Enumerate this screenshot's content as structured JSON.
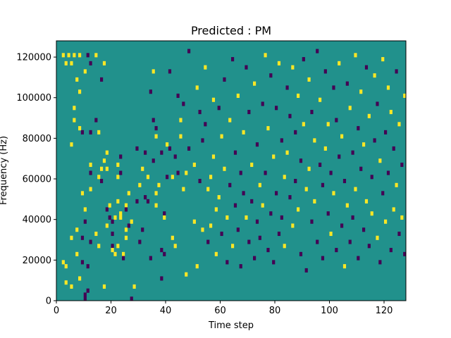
{
  "chart_data": {
    "type": "heatmap",
    "title": "Predicted : PM",
    "xlabel": "Time step",
    "ylabel": "Frequency (Hz)",
    "xlim": [
      0,
      128
    ],
    "ylim": [
      0,
      128000
    ],
    "x_ticks": [
      0,
      20,
      40,
      60,
      80,
      100,
      120
    ],
    "y_ticks": [
      0,
      20000,
      40000,
      60000,
      80000,
      100000,
      120000
    ],
    "y_tick_labels": [
      "0",
      "20000",
      "40000",
      "60000",
      "80000",
      "100000",
      "120000"
    ],
    "grid": false,
    "legend": "none",
    "colormap": "viridis",
    "colors": {
      "background": "#21918c",
      "high": "#fde725",
      "low": "#440154"
    },
    "n_time_steps": 128,
    "n_freq_bins": 64,
    "freq_bin_hz": 2000,
    "default_value": 0,
    "cells": [
      [
        2,
        9,
        "high"
      ],
      [
        2,
        60,
        "high"
      ],
      [
        3,
        58,
        "high"
      ],
      [
        3,
        8,
        "high"
      ],
      [
        3,
        4,
        "high"
      ],
      [
        4,
        60,
        "high"
      ],
      [
        5,
        58,
        "high"
      ],
      [
        5,
        38,
        "high"
      ],
      [
        5,
        15,
        "high"
      ],
      [
        5,
        3,
        "high"
      ],
      [
        6,
        60,
        "high"
      ],
      [
        6,
        47,
        "high"
      ],
      [
        6,
        44,
        "high"
      ],
      [
        7,
        54,
        "high"
      ],
      [
        7,
        17,
        "high"
      ],
      [
        7,
        11,
        "high"
      ],
      [
        8,
        60,
        "high"
      ],
      [
        8,
        51,
        "high"
      ],
      [
        8,
        42,
        "high"
      ],
      [
        8,
        5,
        "high"
      ],
      [
        9,
        41,
        "low"
      ],
      [
        9,
        26,
        "high"
      ],
      [
        9,
        15,
        "low"
      ],
      [
        9,
        9,
        "low"
      ],
      [
        10,
        56,
        "high"
      ],
      [
        10,
        22,
        "high"
      ],
      [
        10,
        19,
        "low"
      ],
      [
        10,
        1,
        "low"
      ],
      [
        10,
        0,
        "low"
      ],
      [
        11,
        60,
        "low"
      ],
      [
        11,
        8,
        "low"
      ],
      [
        11,
        2,
        "low"
      ],
      [
        12,
        58,
        "low"
      ],
      [
        12,
        41,
        "low"
      ],
      [
        12,
        33,
        "high"
      ],
      [
        12,
        31,
        "low"
      ],
      [
        12,
        27,
        "high"
      ],
      [
        12,
        14,
        "low"
      ],
      [
        14,
        60,
        "high"
      ],
      [
        14,
        44,
        "low"
      ],
      [
        14,
        16,
        "high"
      ],
      [
        15,
        41,
        "high"
      ],
      [
        15,
        30,
        "high"
      ],
      [
        15,
        13,
        "high"
      ],
      [
        16,
        54,
        "low"
      ],
      [
        16,
        32,
        "high"
      ],
      [
        16,
        29,
        "low"
      ],
      [
        17,
        58,
        "high"
      ],
      [
        17,
        34,
        "high"
      ],
      [
        17,
        3,
        "high"
      ],
      [
        18,
        36,
        "high"
      ],
      [
        18,
        32,
        "high"
      ],
      [
        18,
        22,
        "low"
      ],
      [
        18,
        18,
        "high"
      ],
      [
        19,
        23,
        "high"
      ],
      [
        19,
        20,
        "low"
      ],
      [
        20,
        19,
        "low"
      ],
      [
        20,
        16,
        "low"
      ],
      [
        20,
        13,
        "low"
      ],
      [
        20,
        12,
        "high"
      ],
      [
        21,
        20,
        "high"
      ],
      [
        21,
        11,
        "high"
      ],
      [
        22,
        33,
        "high"
      ],
      [
        22,
        30,
        "high"
      ],
      [
        22,
        24,
        "high"
      ],
      [
        22,
        13,
        "high"
      ],
      [
        23,
        35,
        "low"
      ],
      [
        23,
        31,
        "low"
      ],
      [
        23,
        21,
        "high"
      ],
      [
        23,
        20,
        "high"
      ],
      [
        24,
        11,
        "high"
      ],
      [
        24,
        10,
        "low"
      ],
      [
        25,
        23,
        "high"
      ],
      [
        25,
        22,
        "low"
      ],
      [
        25,
        17,
        "high"
      ],
      [
        25,
        15,
        "high"
      ],
      [
        26,
        26,
        "high"
      ],
      [
        26,
        18,
        "low"
      ],
      [
        27,
        19,
        "high"
      ],
      [
        27,
        0,
        "low"
      ],
      [
        28,
        3,
        "high"
      ],
      [
        29,
        37,
        "low"
      ],
      [
        29,
        24,
        "low"
      ],
      [
        30,
        28,
        "high"
      ],
      [
        30,
        14,
        "low"
      ],
      [
        31,
        32,
        "high"
      ],
      [
        31,
        17,
        "low"
      ],
      [
        32,
        36,
        "low"
      ],
      [
        32,
        25,
        "low"
      ],
      [
        33,
        30,
        "high"
      ],
      [
        33,
        24,
        "low"
      ],
      [
        34,
        51,
        "low"
      ],
      [
        34,
        10,
        "low"
      ],
      [
        35,
        56,
        "high"
      ],
      [
        35,
        44,
        "low"
      ],
      [
        35,
        34,
        "low"
      ],
      [
        36,
        42,
        "low"
      ],
      [
        36,
        40,
        "high"
      ],
      [
        36,
        26,
        "high"
      ],
      [
        36,
        23,
        "high"
      ],
      [
        37,
        28,
        "high"
      ],
      [
        38,
        36,
        "low"
      ],
      [
        38,
        12,
        "low"
      ],
      [
        38,
        5,
        "low"
      ],
      [
        39,
        21,
        "low"
      ],
      [
        39,
        20,
        "high"
      ],
      [
        39,
        11,
        "low"
      ],
      [
        40,
        38,
        "high"
      ],
      [
        40,
        30,
        "low"
      ],
      [
        41,
        56,
        "low"
      ],
      [
        41,
        37,
        "low"
      ],
      [
        42,
        30,
        "high"
      ],
      [
        42,
        15,
        "high"
      ],
      [
        43,
        35,
        "low"
      ],
      [
        43,
        13,
        "high"
      ],
      [
        44,
        50,
        "low"
      ],
      [
        44,
        31,
        "low"
      ],
      [
        45,
        44,
        "high"
      ],
      [
        45,
        40,
        "high"
      ],
      [
        46,
        48,
        "low"
      ],
      [
        46,
        27,
        "high"
      ],
      [
        47,
        31,
        "high"
      ],
      [
        47,
        6,
        "high"
      ],
      [
        48,
        61,
        "low"
      ],
      [
        48,
        37,
        "low"
      ],
      [
        50,
        33,
        "high"
      ],
      [
        50,
        19,
        "high"
      ],
      [
        51,
        52,
        "high"
      ],
      [
        51,
        8,
        "high"
      ],
      [
        52,
        46,
        "low"
      ],
      [
        52,
        29,
        "low"
      ],
      [
        53,
        39,
        "low"
      ],
      [
        53,
        17,
        "high"
      ],
      [
        54,
        57,
        "high"
      ],
      [
        54,
        43,
        "low"
      ],
      [
        55,
        14,
        "low"
      ],
      [
        55,
        27,
        "high"
      ],
      [
        56,
        18,
        "high"
      ],
      [
        56,
        30,
        "high"
      ],
      [
        57,
        35,
        "high"
      ],
      [
        57,
        49,
        "high"
      ],
      [
        58,
        22,
        "high"
      ],
      [
        58,
        11,
        "high"
      ],
      [
        59,
        47,
        "low"
      ],
      [
        59,
        25,
        "high"
      ],
      [
        60,
        40,
        "high"
      ],
      [
        60,
        16,
        "low"
      ],
      [
        61,
        54,
        "low"
      ],
      [
        61,
        32,
        "high"
      ],
      [
        62,
        20,
        "high"
      ],
      [
        62,
        9,
        "low"
      ],
      [
        63,
        44,
        "high"
      ],
      [
        63,
        28,
        "low"
      ],
      [
        64,
        59,
        "low"
      ],
      [
        64,
        13,
        "high"
      ],
      [
        65,
        36,
        "low"
      ],
      [
        65,
        23,
        "low"
      ],
      [
        66,
        50,
        "high"
      ],
      [
        66,
        17,
        "low"
      ],
      [
        67,
        31,
        "low"
      ],
      [
        67,
        8,
        "low"
      ],
      [
        68,
        41,
        "high"
      ],
      [
        68,
        26,
        "low"
      ],
      [
        69,
        57,
        "low"
      ],
      [
        69,
        20,
        "high"
      ],
      [
        70,
        46,
        "low"
      ],
      [
        70,
        14,
        "low"
      ],
      [
        71,
        33,
        "high"
      ],
      [
        71,
        24,
        "low"
      ],
      [
        72,
        53,
        "high"
      ],
      [
        72,
        10,
        "low"
      ],
      [
        73,
        38,
        "low"
      ],
      [
        73,
        19,
        "low"
      ],
      [
        74,
        28,
        "high"
      ],
      [
        74,
        15,
        "low"
      ],
      [
        75,
        48,
        "low"
      ],
      [
        75,
        23,
        "high"
      ],
      [
        76,
        60,
        "high"
      ],
      [
        76,
        31,
        "low"
      ],
      [
        77,
        42,
        "high"
      ],
      [
        77,
        12,
        "low"
      ],
      [
        78,
        55,
        "low"
      ],
      [
        78,
        21,
        "low"
      ],
      [
        79,
        35,
        "high"
      ],
      [
        79,
        9,
        "low"
      ],
      [
        80,
        47,
        "low"
      ],
      [
        80,
        26,
        "low"
      ],
      [
        81,
        58,
        "high"
      ],
      [
        81,
        16,
        "low"
      ],
      [
        82,
        39,
        "low"
      ],
      [
        82,
        20,
        "low"
      ],
      [
        83,
        30,
        "high"
      ],
      [
        83,
        13,
        "high"
      ],
      [
        84,
        52,
        "low"
      ],
      [
        84,
        36,
        "high"
      ],
      [
        85,
        45,
        "low"
      ],
      [
        85,
        25,
        "low"
      ],
      [
        86,
        57,
        "high"
      ],
      [
        86,
        18,
        "high"
      ],
      [
        87,
        41,
        "low"
      ],
      [
        87,
        29,
        "low"
      ],
      [
        88,
        50,
        "high"
      ],
      [
        88,
        22,
        "high"
      ],
      [
        89,
        34,
        "low"
      ],
      [
        89,
        11,
        "low"
      ],
      [
        90,
        59,
        "low"
      ],
      [
        90,
        43,
        "high"
      ],
      [
        91,
        27,
        "high"
      ],
      [
        91,
        7,
        "low"
      ],
      [
        92,
        54,
        "high"
      ],
      [
        92,
        32,
        "high"
      ],
      [
        93,
        46,
        "low"
      ],
      [
        93,
        19,
        "low"
      ],
      [
        94,
        39,
        "high"
      ],
      [
        94,
        24,
        "high"
      ],
      [
        95,
        61,
        "low"
      ],
      [
        95,
        14,
        "low"
      ],
      [
        96,
        49,
        "high"
      ],
      [
        96,
        33,
        "low"
      ],
      [
        97,
        28,
        "low"
      ],
      [
        97,
        10,
        "low"
      ],
      [
        98,
        56,
        "low"
      ],
      [
        98,
        37,
        "high"
      ],
      [
        99,
        43,
        "high"
      ],
      [
        99,
        21,
        "low"
      ],
      [
        100,
        31,
        "low"
      ],
      [
        100,
        16,
        "high"
      ],
      [
        101,
        52,
        "low"
      ],
      [
        101,
        26,
        "high"
      ],
      [
        102,
        44,
        "low"
      ],
      [
        102,
        12,
        "low"
      ],
      [
        103,
        58,
        "high"
      ],
      [
        103,
        35,
        "low"
      ],
      [
        104,
        40,
        "high"
      ],
      [
        104,
        18,
        "low"
      ],
      [
        105,
        29,
        "low"
      ],
      [
        105,
        8,
        "high"
      ],
      [
        106,
        53,
        "low"
      ],
      [
        106,
        23,
        "high"
      ],
      [
        107,
        47,
        "high"
      ],
      [
        107,
        14,
        "low"
      ],
      [
        108,
        36,
        "low"
      ],
      [
        108,
        20,
        "low"
      ],
      [
        109,
        60,
        "high"
      ],
      [
        109,
        27,
        "high"
      ],
      [
        110,
        42,
        "low"
      ],
      [
        110,
        10,
        "low"
      ],
      [
        111,
        51,
        "high"
      ],
      [
        111,
        32,
        "low"
      ],
      [
        112,
        38,
        "high"
      ],
      [
        112,
        17,
        "low"
      ],
      [
        113,
        57,
        "low"
      ],
      [
        113,
        24,
        "high"
      ],
      [
        114,
        45,
        "high"
      ],
      [
        114,
        13,
        "low"
      ],
      [
        115,
        30,
        "low"
      ],
      [
        115,
        21,
        "high"
      ],
      [
        116,
        55,
        "high"
      ],
      [
        116,
        39,
        "low"
      ],
      [
        117,
        48,
        "low"
      ],
      [
        117,
        15,
        "high"
      ],
      [
        118,
        34,
        "high"
      ],
      [
        118,
        9,
        "low"
      ],
      [
        119,
        59,
        "high"
      ],
      [
        119,
        26,
        "low"
      ],
      [
        120,
        41,
        "low"
      ],
      [
        120,
        19,
        "high"
      ],
      [
        121,
        52,
        "high"
      ],
      [
        121,
        31,
        "low"
      ],
      [
        122,
        46,
        "high"
      ],
      [
        122,
        12,
        "low"
      ],
      [
        123,
        37,
        "low"
      ],
      [
        123,
        22,
        "high"
      ],
      [
        124,
        56,
        "low"
      ],
      [
        124,
        28,
        "high"
      ],
      [
        125,
        43,
        "high"
      ],
      [
        125,
        16,
        "low"
      ],
      [
        126,
        33,
        "low"
      ],
      [
        126,
        20,
        "high"
      ],
      [
        127,
        50,
        "high"
      ],
      [
        127,
        11,
        "low"
      ]
    ]
  }
}
